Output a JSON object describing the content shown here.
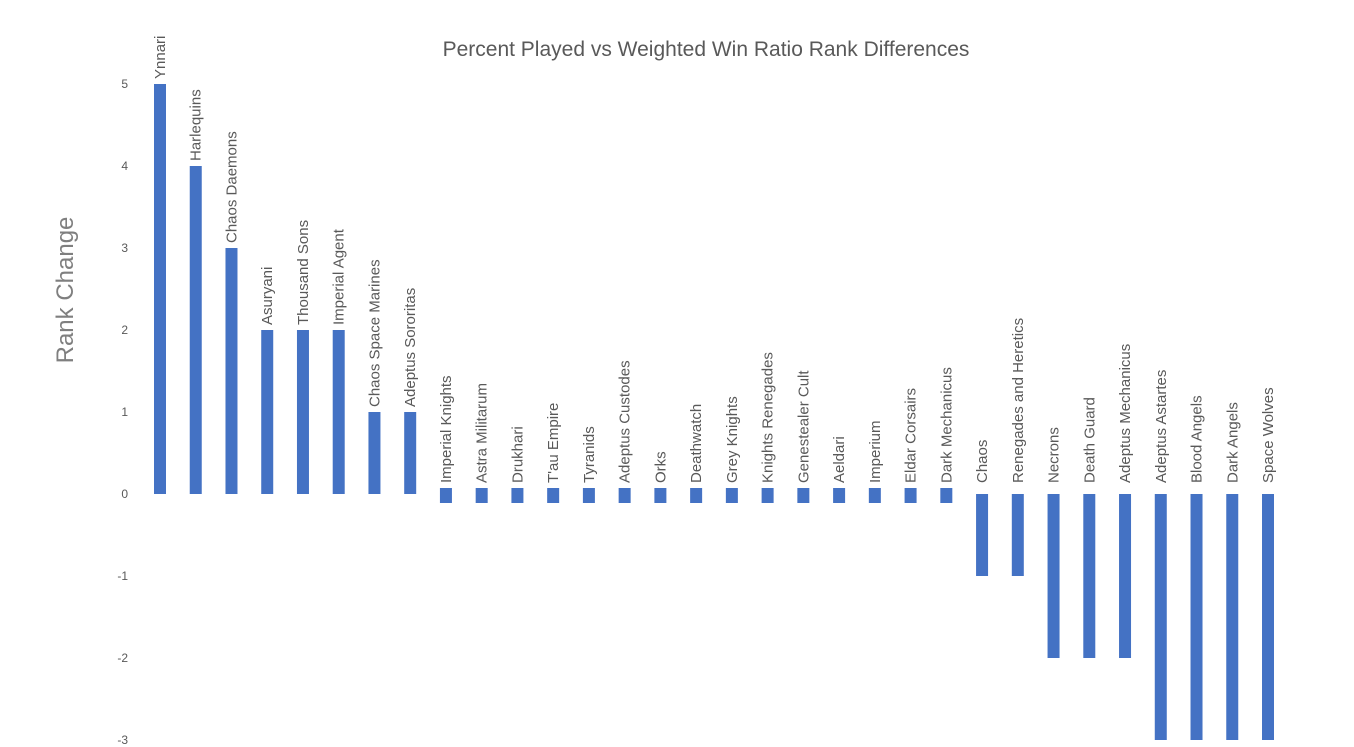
{
  "chart_data": {
    "type": "bar",
    "title": "Percent Played vs Weighted Win Ratio Rank Differences",
    "xlabel": "",
    "ylabel": "Rank Change",
    "ylim": [
      -3,
      5
    ],
    "yticks": [
      5,
      4,
      3,
      2,
      1,
      0,
      -1,
      -2,
      -3
    ],
    "grid": false,
    "bar_color": "#4472c4",
    "categories": [
      "Ynnari",
      "Harlequins",
      "Chaos Daemons",
      "Asuryani",
      "Thousand Sons",
      "Imperial Agent",
      "Chaos Space Marines",
      "Adeptus Sororitas",
      "Imperial Knights",
      "Astra Militarum",
      "Drukhari",
      "T'au Empire",
      "Tyranids",
      "Adeptus Custodes",
      "Orks",
      "Deathwatch",
      "Grey Knights",
      "Knights Renegades",
      "Genestealer Cult",
      "Aeldari",
      "Imperium",
      "Eldar Corsairs",
      "Dark Mechanicus",
      "Chaos",
      "Renegades and Heretics",
      "Necrons",
      "Death Guard",
      "Adeptus Mechanicus",
      "Adeptus Astartes",
      "Blood Angels",
      "Dark Angels",
      "Space Wolves"
    ],
    "values": [
      5,
      4,
      3,
      2,
      2,
      2,
      1,
      1,
      0,
      0,
      0,
      0,
      0,
      0,
      0,
      0,
      0,
      0,
      0,
      0,
      0,
      0,
      0,
      -1,
      -1,
      -2,
      -2,
      -2,
      -3,
      -3,
      -3,
      -3
    ]
  }
}
